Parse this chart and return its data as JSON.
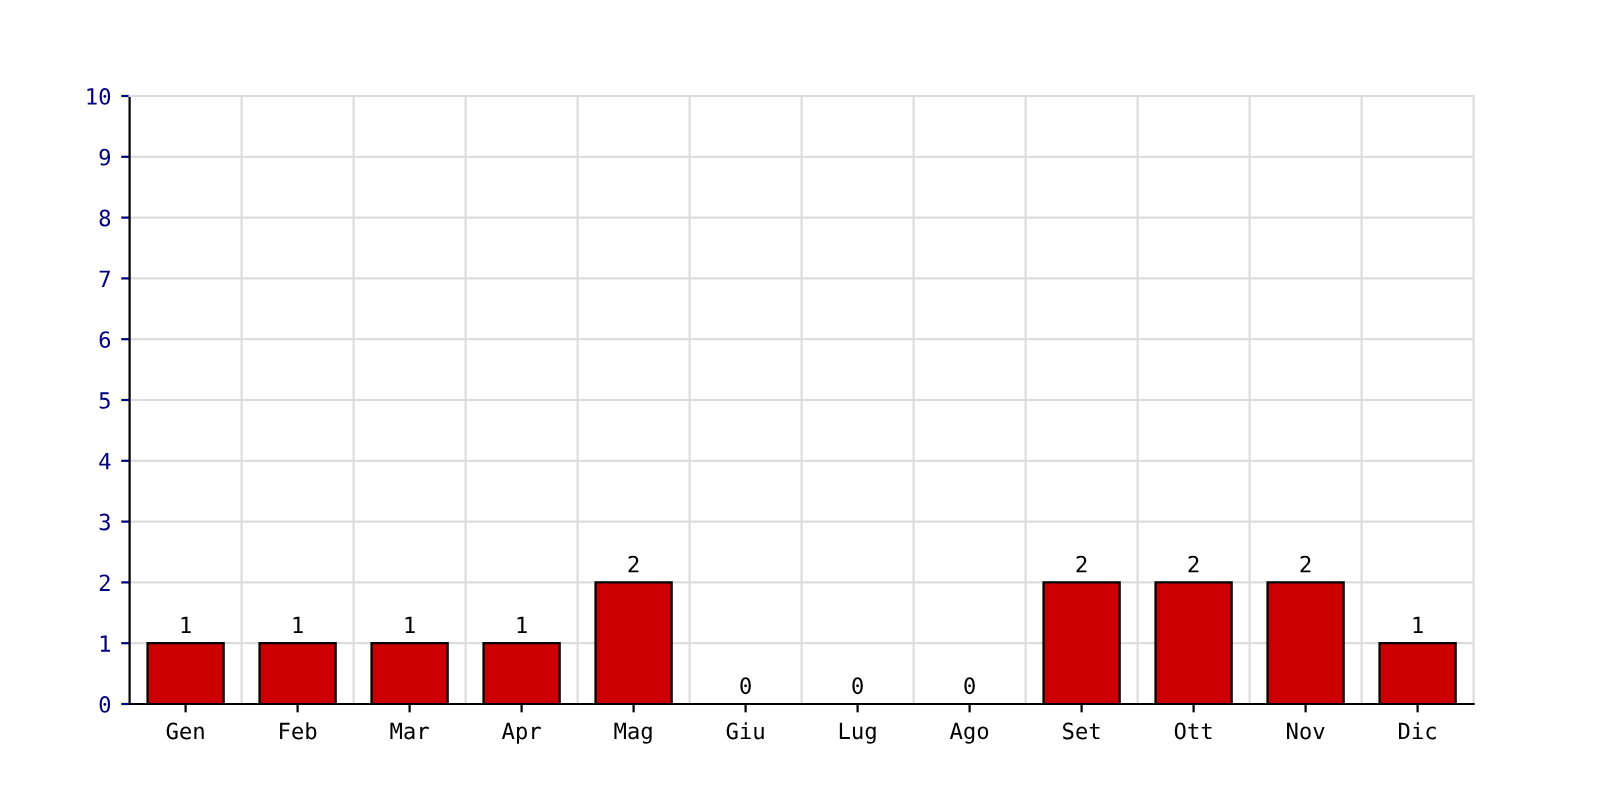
{
  "chart_data": {
    "type": "bar",
    "categories": [
      "Gen",
      "Feb",
      "Mar",
      "Apr",
      "Mag",
      "Giu",
      "Lug",
      "Ago",
      "Set",
      "Ott",
      "Nov",
      "Dic"
    ],
    "values": [
      1,
      1,
      1,
      1,
      2,
      0,
      0,
      0,
      2,
      2,
      2,
      1
    ],
    "color": "#cc0000",
    "ylim": [
      0,
      10
    ],
    "yticks": [
      0,
      1,
      2,
      3,
      4,
      5,
      6,
      7,
      8,
      9,
      10
    ],
    "grid": true,
    "data_labels": true
  }
}
